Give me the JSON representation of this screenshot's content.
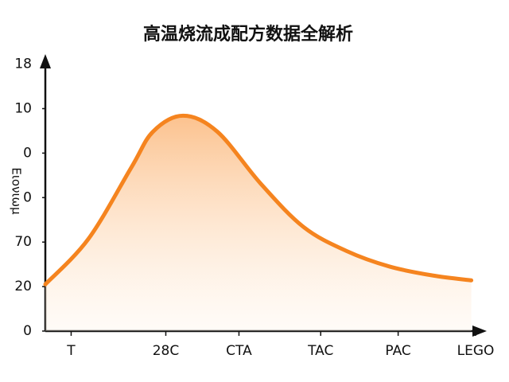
{
  "chart_data": {
    "type": "area",
    "title": "高温烧流成配方数据全解析",
    "y_label": "Eιονιωμ",
    "x": [
      0,
      1,
      2,
      2.5,
      3.2,
      4,
      5,
      6,
      7,
      8,
      9,
      9.9
    ],
    "series": [
      {
        "name": "",
        "color": "#f5841f",
        "values": [
          1.05,
          2.07,
          3.68,
          4.48,
          4.84,
          4.48,
          3.32,
          2.34,
          1.8,
          1.45,
          1.25,
          1.14
        ]
      }
    ],
    "xlim": [
      0,
      10
    ],
    "ylim": [
      0,
      6.1
    ],
    "xticks": [
      {
        "value": 0.6,
        "label": "T"
      },
      {
        "value": 2.8,
        "label": "28C"
      },
      {
        "value": 4.5,
        "label": "CTA"
      },
      {
        "value": 6.4,
        "label": "TAC"
      },
      {
        "value": 8.2,
        "label": "PAC"
      },
      {
        "value": 10,
        "label": "LEGO"
      }
    ],
    "yticks": [
      {
        "value": 0,
        "label": "0"
      },
      {
        "value": 1,
        "label": "20"
      },
      {
        "value": 2,
        "label": "70"
      },
      {
        "value": 3,
        "label": "0"
      },
      {
        "value": 4,
        "label": "0"
      },
      {
        "value": 5,
        "label": "10"
      },
      {
        "value": 6,
        "label": "18"
      }
    ]
  }
}
